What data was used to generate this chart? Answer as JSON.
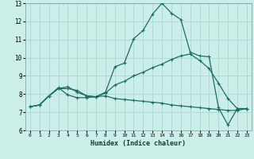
{
  "xlabel": "Humidex (Indice chaleur)",
  "bg_color": "#cceee8",
  "grid_color": "#aad8d2",
  "line_color": "#1a6e62",
  "xlim": [
    -0.5,
    23.5
  ],
  "ylim": [
    6,
    13
  ],
  "xticks": [
    0,
    1,
    2,
    3,
    4,
    5,
    6,
    7,
    8,
    9,
    10,
    11,
    12,
    13,
    14,
    15,
    16,
    17,
    18,
    19,
    20,
    21,
    22,
    23
  ],
  "yticks": [
    6,
    7,
    8,
    9,
    10,
    11,
    12,
    13
  ],
  "curve1_x": [
    0,
    1,
    2,
    3,
    4,
    5,
    6,
    7,
    8,
    9,
    10,
    11,
    12,
    13,
    14,
    15,
    16,
    17,
    18,
    19,
    20,
    21,
    22,
    23
  ],
  "curve1_y": [
    7.3,
    7.4,
    7.9,
    8.3,
    8.4,
    8.1,
    7.9,
    7.85,
    8.1,
    9.5,
    9.7,
    11.05,
    11.5,
    12.4,
    13.0,
    12.45,
    12.1,
    10.3,
    10.1,
    10.05,
    7.25,
    6.3,
    7.2,
    7.2
  ],
  "curve2_x": [
    0,
    1,
    2,
    3,
    4,
    5,
    6,
    7,
    8,
    9,
    10,
    11,
    12,
    13,
    14,
    15,
    16,
    17,
    18,
    19,
    20,
    21,
    22,
    23
  ],
  "curve2_y": [
    7.3,
    7.4,
    7.9,
    8.3,
    8.3,
    8.2,
    7.9,
    7.85,
    8.05,
    8.5,
    8.7,
    9.0,
    9.2,
    9.45,
    9.65,
    9.9,
    10.1,
    10.2,
    9.85,
    9.4,
    8.6,
    7.75,
    7.2,
    7.2
  ],
  "curve3_x": [
    0,
    1,
    2,
    3,
    4,
    5,
    6,
    7,
    8,
    9,
    10,
    11,
    12,
    13,
    14,
    15,
    16,
    17,
    18,
    19,
    20,
    21,
    22,
    23
  ],
  "curve3_y": [
    7.3,
    7.4,
    7.9,
    8.35,
    7.95,
    7.8,
    7.8,
    7.85,
    7.9,
    7.75,
    7.7,
    7.65,
    7.6,
    7.55,
    7.5,
    7.4,
    7.35,
    7.3,
    7.25,
    7.2,
    7.15,
    7.1,
    7.1,
    7.2
  ]
}
